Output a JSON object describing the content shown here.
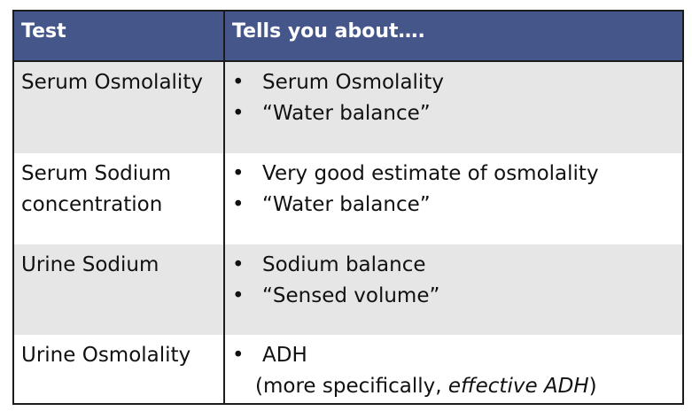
{
  "table": {
    "headers": [
      "Test",
      "Tells you about…."
    ],
    "rows": [
      {
        "test": [
          "Serum Osmolality"
        ],
        "bullets": [
          "Serum Osmolality",
          "“Water balance”"
        ]
      },
      {
        "test": [
          "Serum Sodium",
          "concentration"
        ],
        "bullets": [
          "Very good estimate of osmolality",
          "“Water balance”"
        ]
      },
      {
        "test": [
          "Urine Sodium"
        ],
        "bullets": [
          "Sodium balance",
          "“Sensed volume”"
        ]
      },
      {
        "test": [
          "Urine Osmolality"
        ],
        "bullets": [
          "ADH"
        ],
        "note_prefix": "(more specifically, ",
        "note_em": "effective ADH",
        "note_suffix": ")"
      }
    ]
  },
  "colors": {
    "header_bg": "#44568a",
    "header_text": "#ffffff",
    "stripe": "#e6e6e6",
    "border": "#1c1c1c"
  }
}
